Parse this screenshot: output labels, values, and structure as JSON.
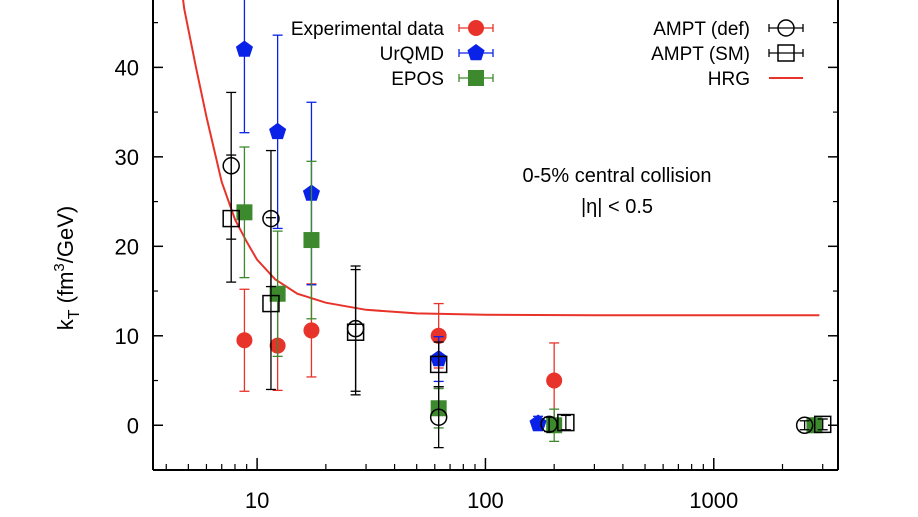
{
  "chart_data": {
    "type": "scatter",
    "x_scale": "log",
    "xlim": [
      3.5,
      3500
    ],
    "ylim": [
      -5,
      52
    ],
    "y_ticks": [
      0,
      10,
      20,
      30,
      40,
      50
    ],
    "x_tick_labels": [
      {
        "value": 10,
        "label": "10"
      },
      {
        "value": 100,
        "label": "100"
      },
      {
        "value": 1000,
        "label": "1000"
      }
    ],
    "ylabel": {
      "main": "k",
      "sub": "T",
      "unit_pre": " (fm",
      "sup": "3",
      "unit_post": "/GeV)"
    },
    "xlabel": "",
    "annotations": {
      "line1": "0-5% central collision",
      "line2": "|η| < 0.5"
    },
    "legend": {
      "placement": "top",
      "left": [
        "Experimental data",
        "UrQMD",
        "EPOS"
      ],
      "right": [
        "AMPT (def)",
        "AMPT (SM)",
        "HRG"
      ]
    },
    "series": [
      {
        "name": "Experimental data",
        "marker": "circle-filled",
        "color": "#e8332a",
        "points": [
          {
            "x": 8.8,
            "y": 9.5,
            "err": 5.7
          },
          {
            "x": 12.3,
            "y": 8.9,
            "err": 5.0
          },
          {
            "x": 17.3,
            "y": 10.6,
            "err": 5.2
          },
          {
            "x": 62.4,
            "y": 10.0,
            "err": 3.6
          },
          {
            "x": 200,
            "y": 5.0,
            "err": 4.2
          }
        ]
      },
      {
        "name": "UrQMD",
        "marker": "pentagon-filled",
        "color": "#0a22e8",
        "points": [
          {
            "x": 8.8,
            "y": 42.0,
            "err": 9.3
          },
          {
            "x": 12.3,
            "y": 32.8,
            "err": 10.8
          },
          {
            "x": 17.3,
            "y": 25.9,
            "err": 10.2
          },
          {
            "x": 62.4,
            "y": 7.4,
            "err": 2.5
          },
          {
            "x": 170,
            "y": 0.2,
            "err": 0.8
          }
        ]
      },
      {
        "name": "EPOS",
        "marker": "square-filled",
        "color": "#3d8a2e",
        "points": [
          {
            "x": 8.8,
            "y": 23.8,
            "err": 7.3
          },
          {
            "x": 12.3,
            "y": 14.7,
            "err": 7.0
          },
          {
            "x": 17.3,
            "y": 20.7,
            "err": 8.8
          },
          {
            "x": 62.4,
            "y": 1.9,
            "err": 2.2
          },
          {
            "x": 200,
            "y": 0.0,
            "err": 1.8
          },
          {
            "x": 2760,
            "y": 0.0,
            "err": 0.8
          }
        ]
      },
      {
        "name": "AMPT (def)",
        "marker": "circle-open",
        "color": "#000000",
        "points": [
          {
            "x": 7.7,
            "y": 29.0,
            "err": 8.2
          },
          {
            "x": 11.5,
            "y": 23.1,
            "err": 7.6
          },
          {
            "x": 27,
            "y": 10.8,
            "err": 7.0
          },
          {
            "x": 62.4,
            "y": 0.9,
            "err": 3.4
          },
          {
            "x": 190,
            "y": 0.1,
            "err": 0.8
          },
          {
            "x": 2500,
            "y": 0.0,
            "err": 0.5
          }
        ]
      },
      {
        "name": "AMPT (SM)",
        "marker": "square-open",
        "color": "#000000",
        "points": [
          {
            "x": 7.7,
            "y": 23.1,
            "err": 7.1
          },
          {
            "x": 11.5,
            "y": 13.6,
            "err": 9.6
          },
          {
            "x": 27,
            "y": 10.4,
            "err": 7.0
          },
          {
            "x": 62.4,
            "y": 6.8,
            "err": 2.5
          },
          {
            "x": 225,
            "y": 0.3,
            "err": 0.8
          },
          {
            "x": 3000,
            "y": 0.1,
            "err": 0.6
          }
        ]
      },
      {
        "name": "HRG",
        "marker": "line",
        "color": "#e8332a",
        "line": [
          {
            "x": 4.5,
            "y": 52
          },
          {
            "x": 4.8,
            "y": 46.5
          },
          {
            "x": 5.4,
            "y": 40.0
          },
          {
            "x": 6.0,
            "y": 34.5
          },
          {
            "x": 7.0,
            "y": 27.2
          },
          {
            "x": 8.0,
            "y": 23.0
          },
          {
            "x": 9.0,
            "y": 20.5
          },
          {
            "x": 10.0,
            "y": 18.5
          },
          {
            "x": 12.0,
            "y": 16.3
          },
          {
            "x": 15.0,
            "y": 14.7
          },
          {
            "x": 20.0,
            "y": 13.7
          },
          {
            "x": 30.0,
            "y": 12.9
          },
          {
            "x": 50.0,
            "y": 12.5
          },
          {
            "x": 100.0,
            "y": 12.35
          },
          {
            "x": 300.0,
            "y": 12.3
          },
          {
            "x": 1000.0,
            "y": 12.3
          },
          {
            "x": 2900.0,
            "y": 12.3
          }
        ]
      }
    ]
  }
}
